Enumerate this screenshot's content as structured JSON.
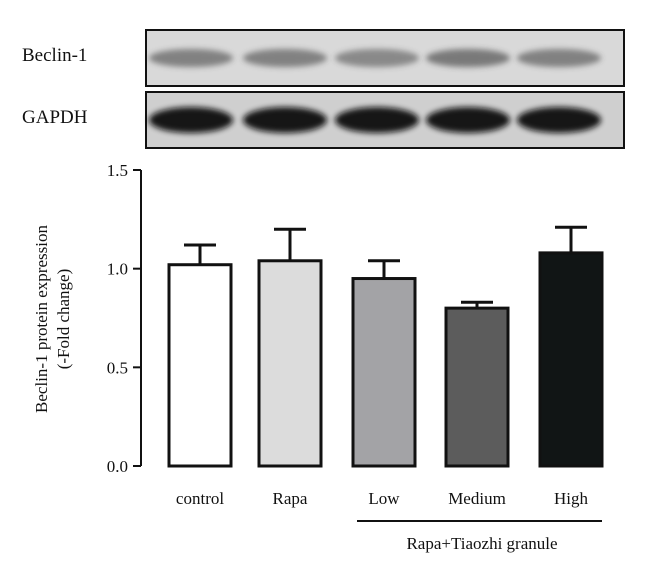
{
  "blots": [
    {
      "label": "Beclin-1",
      "band_intensity": [
        0.55,
        0.55,
        0.5,
        0.6,
        0.55
      ],
      "band_color": "#3a3a3a"
    },
    {
      "label": "GAPDH",
      "band_intensity": [
        0.95,
        0.95,
        0.95,
        0.95,
        0.95
      ],
      "band_color": "#111111"
    }
  ],
  "chart_data": {
    "type": "bar",
    "categories": [
      "control",
      "Rapa",
      "Low",
      "Medium",
      "High"
    ],
    "values": [
      1.02,
      1.04,
      0.95,
      0.8,
      1.08
    ],
    "errors": [
      0.1,
      0.16,
      0.09,
      0.03,
      0.13
    ],
    "bar_colors": [
      "#ffffff",
      "#dcdcdc",
      "#a3a3a6",
      "#5c5c5c",
      "#111515"
    ],
    "ylabel_line1": "Beclin-1 protein expression",
    "ylabel_line2": "(-Fold change)",
    "ylim": [
      0,
      1.5
    ],
    "yticks": [
      0.0,
      0.5,
      1.0,
      1.5
    ],
    "ytick_labels": [
      "0.0",
      "0.5",
      "1.0",
      "1.5"
    ],
    "group_label": "Rapa+Tiaozhi granule",
    "grid": false
  }
}
